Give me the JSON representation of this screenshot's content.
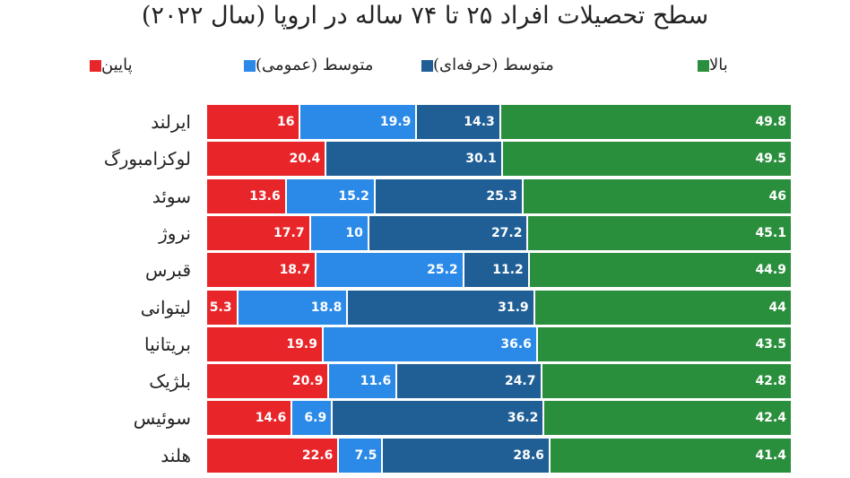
{
  "chart_data": {
    "type": "bar",
    "orientation": "horizontal-stacked-100",
    "title": "سطح تحصیلات افراد ۲۵ تا ۷۴ ساله در اروپا (سال ۲۰۲۲)",
    "categories": [
      "ایرلند",
      "لوکزامبورگ",
      "سوئد",
      "نروژ",
      "قبرس",
      "لیتوانی",
      "بریتانیا",
      "بلژیک",
      "سوئیس",
      "هلند"
    ],
    "series": [
      {
        "name": "پایین",
        "color": "#e8262a",
        "values": [
          16,
          20.4,
          13.6,
          17.7,
          18.7,
          5.3,
          19.9,
          20.9,
          14.6,
          22.6
        ]
      },
      {
        "name": "متوسط (عمومی)",
        "color": "#2b8ae8",
        "values": [
          19.9,
          null,
          15.2,
          10,
          25.2,
          18.8,
          36.6,
          11.6,
          6.9,
          7.5
        ]
      },
      {
        "name": "متوسط (حرفه‌ای)",
        "color": "#1f5f96",
        "values": [
          14.3,
          30.1,
          25.3,
          27.2,
          11.2,
          31.9,
          null,
          24.7,
          36.2,
          28.6
        ]
      },
      {
        "name": "بالا",
        "color": "#2a8f3c",
        "values": [
          49.8,
          49.5,
          46,
          45.1,
          44.9,
          44,
          43.5,
          42.8,
          42.4,
          41.4
        ]
      }
    ],
    "legend_position": "top",
    "grid": false
  }
}
